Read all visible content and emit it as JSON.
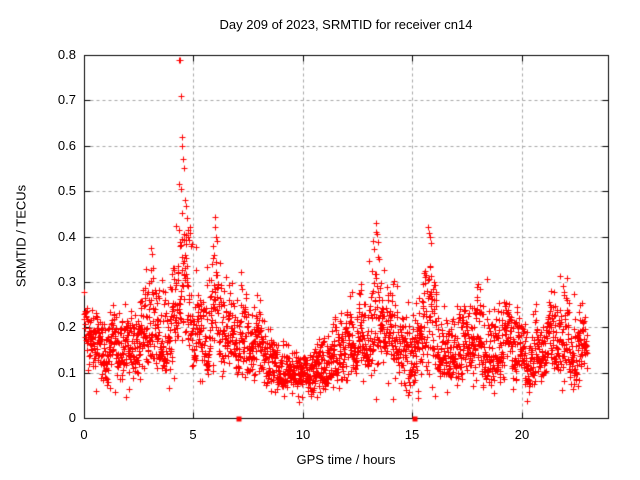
{
  "figure": {
    "background": "#ffffff",
    "border_color": "#000000"
  },
  "chart_data": {
    "type": "scatter",
    "title": "Day 209 of 2023, SRMTID for receiver cn14",
    "xlabel": "GPS time / hours",
    "ylabel": "SRMTID / TECUs",
    "xlim": [
      0,
      23.95
    ],
    "ylim": [
      0,
      0.8
    ],
    "xticks": [
      {
        "v": 0,
        "label": "0"
      },
      {
        "v": 5,
        "label": "5"
      },
      {
        "v": 10,
        "label": "10"
      },
      {
        "v": 15,
        "label": "15"
      },
      {
        "v": 20,
        "label": "20"
      }
    ],
    "yticks": [
      {
        "v": 0.0,
        "label": "0"
      },
      {
        "v": 0.1,
        "label": "0.1"
      },
      {
        "v": 0.2,
        "label": "0.2"
      },
      {
        "v": 0.3,
        "label": "0.3"
      },
      {
        "v": 0.4,
        "label": "0.4"
      },
      {
        "v": 0.5,
        "label": "0.5"
      },
      {
        "v": 0.6,
        "label": "0.6"
      },
      {
        "v": 0.7,
        "label": "0.7"
      },
      {
        "v": 0.8,
        "label": "0.8"
      }
    ],
    "grid": {
      "show": true,
      "style": "dashed",
      "color": "#a6a6a6"
    },
    "marker": {
      "shape": "plus",
      "color": "#ff0000",
      "size": 7
    },
    "cadence_points_per_hour": 120,
    "envelope": [
      [
        0.0,
        0.2,
        0.13,
        0.3
      ],
      [
        0.3,
        0.18,
        0.11,
        0.27
      ],
      [
        0.6,
        0.16,
        0.09,
        0.24
      ],
      [
        1.0,
        0.14,
        0.07,
        0.22
      ],
      [
        1.4,
        0.17,
        0.1,
        0.28
      ],
      [
        1.8,
        0.16,
        0.09,
        0.25
      ],
      [
        2.2,
        0.14,
        0.07,
        0.22
      ],
      [
        2.6,
        0.16,
        0.09,
        0.27
      ],
      [
        3.0,
        0.21,
        0.12,
        0.37
      ],
      [
        3.3,
        0.2,
        0.12,
        0.34
      ],
      [
        3.6,
        0.16,
        0.1,
        0.27
      ],
      [
        4.0,
        0.18,
        0.1,
        0.31
      ],
      [
        4.3,
        0.24,
        0.13,
        0.48
      ],
      [
        4.55,
        0.27,
        0.15,
        0.56
      ],
      [
        4.8,
        0.22,
        0.13,
        0.4
      ],
      [
        5.0,
        0.2,
        0.12,
        0.38
      ],
      [
        5.3,
        0.19,
        0.12,
        0.33
      ],
      [
        5.6,
        0.17,
        0.1,
        0.3
      ],
      [
        5.95,
        0.22,
        0.12,
        0.43
      ],
      [
        6.3,
        0.18,
        0.1,
        0.31
      ],
      [
        6.7,
        0.17,
        0.09,
        0.3
      ],
      [
        7.1,
        0.17,
        0.1,
        0.31
      ],
      [
        7.5,
        0.18,
        0.1,
        0.3
      ],
      [
        8.0,
        0.15,
        0.08,
        0.26
      ],
      [
        8.5,
        0.12,
        0.06,
        0.21
      ],
      [
        9.0,
        0.105,
        0.06,
        0.18
      ],
      [
        9.5,
        0.1,
        0.055,
        0.16
      ],
      [
        10.0,
        0.09,
        0.05,
        0.15
      ],
      [
        10.5,
        0.1,
        0.055,
        0.17
      ],
      [
        11.0,
        0.11,
        0.06,
        0.19
      ],
      [
        11.5,
        0.13,
        0.07,
        0.23
      ],
      [
        12.0,
        0.15,
        0.08,
        0.26
      ],
      [
        12.5,
        0.17,
        0.1,
        0.29
      ],
      [
        13.0,
        0.18,
        0.1,
        0.32
      ],
      [
        13.4,
        0.21,
        0.12,
        0.39
      ],
      [
        13.8,
        0.19,
        0.11,
        0.34
      ],
      [
        14.2,
        0.17,
        0.1,
        0.29
      ],
      [
        14.6,
        0.15,
        0.08,
        0.26
      ],
      [
        15.0,
        0.14,
        0.07,
        0.25
      ],
      [
        15.4,
        0.16,
        0.08,
        0.29
      ],
      [
        15.8,
        0.2,
        0.1,
        0.4
      ],
      [
        16.1,
        0.17,
        0.09,
        0.31
      ],
      [
        16.5,
        0.14,
        0.07,
        0.24
      ],
      [
        17.0,
        0.15,
        0.08,
        0.26
      ],
      [
        17.5,
        0.16,
        0.08,
        0.28
      ],
      [
        18.0,
        0.17,
        0.09,
        0.3
      ],
      [
        18.5,
        0.14,
        0.07,
        0.26
      ],
      [
        19.0,
        0.15,
        0.07,
        0.27
      ],
      [
        19.5,
        0.16,
        0.08,
        0.28
      ],
      [
        20.0,
        0.14,
        0.07,
        0.24
      ],
      [
        20.4,
        0.12,
        0.05,
        0.21
      ],
      [
        20.8,
        0.14,
        0.07,
        0.25
      ],
      [
        21.2,
        0.16,
        0.08,
        0.28
      ],
      [
        21.6,
        0.17,
        0.09,
        0.3
      ],
      [
        22.0,
        0.18,
        0.09,
        0.31
      ],
      [
        22.4,
        0.15,
        0.07,
        0.26
      ],
      [
        22.7,
        0.16,
        0.08,
        0.27
      ],
      [
        23.0,
        0.17,
        0.1,
        0.26
      ]
    ],
    "outliers": [
      [
        4.33,
        0.79
      ],
      [
        4.37,
        0.788
      ],
      [
        4.45,
        0.71
      ],
      [
        4.47,
        0.62
      ],
      [
        4.5,
        0.6
      ],
      [
        4.53,
        0.57
      ],
      [
        4.55,
        0.55
      ],
      [
        4.42,
        0.505
      ],
      [
        4.6,
        0.48
      ],
      [
        4.64,
        0.468
      ],
      [
        4.7,
        0.44
      ],
      [
        4.76,
        0.415
      ],
      [
        5.97,
        0.443
      ],
      [
        6.0,
        0.42
      ],
      [
        6.03,
        0.4
      ],
      [
        13.38,
        0.405
      ],
      [
        13.42,
        0.388
      ],
      [
        15.78,
        0.408
      ],
      [
        15.82,
        0.398
      ],
      [
        15.86,
        0.385
      ],
      [
        3.05,
        0.375
      ],
      [
        3.1,
        0.362
      ]
    ],
    "zero_points": [
      7.05,
      15.08
    ]
  }
}
